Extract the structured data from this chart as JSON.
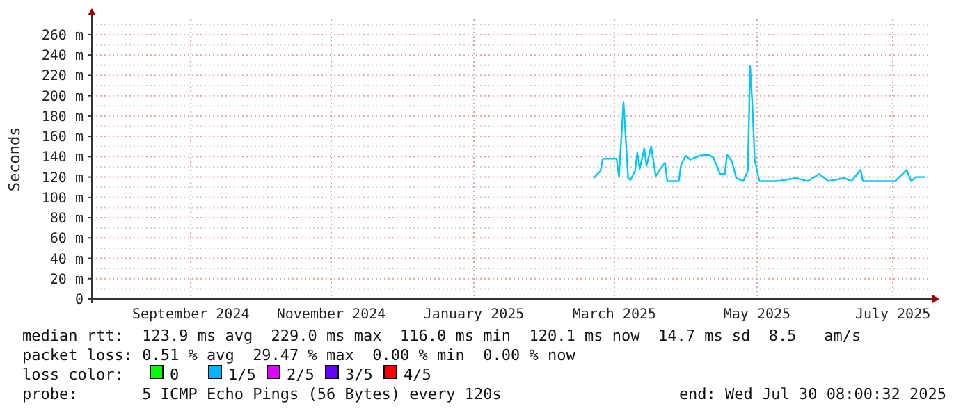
{
  "chart_data": {
    "type": "line",
    "ylabel": "Seconds",
    "xlim": [
      "2024-07-31",
      "2025-07-30"
    ],
    "ylim": [
      0,
      275
    ],
    "yticks": [
      0,
      {
        "value": 20,
        "label": "20 m"
      },
      {
        "value": 40,
        "label": "40 m"
      },
      {
        "value": 60,
        "label": "60 m"
      },
      {
        "value": 80,
        "label": "80 m"
      },
      {
        "value": 100,
        "label": "100 m"
      },
      {
        "value": 120,
        "label": "120 m"
      },
      {
        "value": 140,
        "label": "140 m"
      },
      {
        "value": 160,
        "label": "160 m"
      },
      {
        "value": 180,
        "label": "180 m"
      },
      {
        "value": 200,
        "label": "200 m"
      },
      {
        "value": 220,
        "label": "220 m"
      },
      {
        "value": 240,
        "label": "240 m"
      },
      {
        "value": 260,
        "label": "260 m"
      }
    ],
    "xticks": [
      {
        "value": "2024-09-12",
        "label": "September 2024"
      },
      {
        "value": "2024-11-12",
        "label": "November 2024"
      },
      {
        "value": "2025-01-13",
        "label": "January 2025"
      },
      {
        "value": "2025-03-15",
        "label": "March 2025"
      },
      {
        "value": "2025-05-16",
        "label": "May 2025"
      },
      {
        "value": "2025-07-14",
        "label": "July 2025"
      }
    ],
    "grid": true,
    "legend": "bottom left",
    "legend_title": "loss color:",
    "line_style": "solid",
    "marker": "none",
    "series": [
      {
        "color": "#00c8ff",
        "x": [
          "2025-03-06",
          "2025-03-09",
          "2025-03-10",
          "2025-03-16",
          "2025-03-17",
          "2025-03-19",
          "2025-03-20",
          "2025-03-21",
          "2025-03-22",
          "2025-03-24",
          "2025-03-25",
          "2025-03-26",
          "2025-03-28",
          "2025-03-29",
          "2025-03-31",
          "2025-04-02",
          "2025-04-04",
          "2025-04-06",
          "2025-04-07",
          "2025-04-12",
          "2025-04-13",
          "2025-04-15",
          "2025-04-17",
          "2025-04-21",
          "2025-04-25",
          "2025-04-27",
          "2025-04-30",
          "2025-05-02",
          "2025-05-03",
          "2025-05-05",
          "2025-05-07",
          "2025-05-10",
          "2025-05-12",
          "2025-05-13",
          "2025-05-14",
          "2025-05-15",
          "2025-05-17",
          "2025-05-25",
          "2025-06-02",
          "2025-06-07",
          "2025-06-12",
          "2025-06-16",
          "2025-06-23",
          "2025-06-26",
          "2025-06-30",
          "2025-07-01",
          "2025-07-15",
          "2025-07-20",
          "2025-07-22",
          "2025-07-24",
          "2025-07-28"
        ],
        "values": [
          119,
          126,
          138,
          138,
          120,
          194,
          156,
          119,
          117,
          126,
          144,
          128,
          148,
          131,
          150,
          121,
          128,
          134,
          116,
          116,
          132,
          141,
          137,
          141,
          142,
          139,
          123,
          123,
          142,
          136,
          119,
          116,
          126,
          229,
          190,
          137,
          116,
          116,
          119,
          116,
          123,
          116,
          119,
          116,
          127,
          116,
          116,
          127,
          116,
          120,
          120
        ]
      },
      {
        "name": "0",
        "color": "#00ff00"
      },
      {
        "name": "1/5",
        "color": "#00b8ff"
      },
      {
        "name": "2/5",
        "color": "#dd00ff"
      },
      {
        "name": "3/5",
        "color": "#6600ff"
      },
      {
        "name": "4/5",
        "color": "#ff0000"
      }
    ],
    "annotations": [
      "median rtt:  123.9 ms avg  229.0 ms max  116.0 ms min  120.1 ms now  14.7 ms sd  8.5   am/s",
      "packet loss: 0.51 % avg  29.47 % max  0.00 % min  0.00 % now",
      "probe:       5 ICMP Echo Pings (56 Bytes) every 120s",
      "end: Wed Jul 30 08:00:32 2025"
    ]
  }
}
